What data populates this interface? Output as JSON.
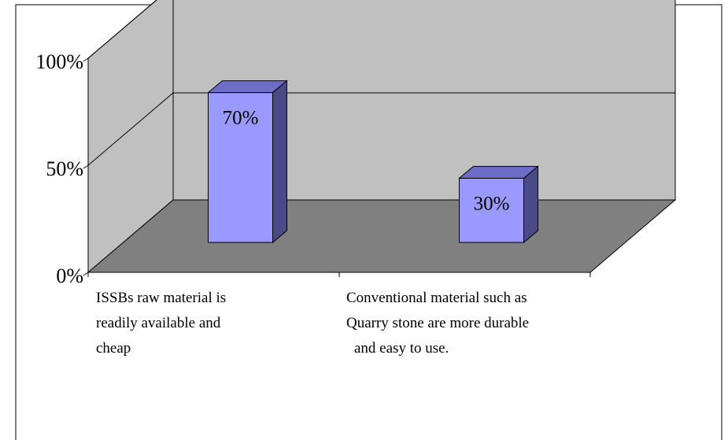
{
  "chart_data": {
    "type": "bar",
    "style": "3d-column",
    "categories": [
      "ISSBs raw material is readily available and cheap",
      "Conventional material such as Quarry stone are more durable and easy to use."
    ],
    "category_lines": [
      [
        "ISSBs raw material is",
        "readily available and",
        "cheap"
      ],
      [
        "Conventional material such as",
        "Quarry stone are more durable",
        "and easy to use."
      ]
    ],
    "values": [
      70,
      30
    ],
    "data_labels": [
      "70%",
      "30%"
    ],
    "ylim": [
      0,
      100
    ],
    "yticks": [
      0,
      50,
      100
    ],
    "ytick_labels": [
      "0%",
      "50%",
      "100%"
    ],
    "grid": true,
    "legend": "none",
    "colors": {
      "bar_front": "#9999ff",
      "bar_top": "#6e6ec8",
      "bar_side": "#4a4a86",
      "back_wall": "#c0c0c0",
      "side_wall": "#c0c0c0",
      "floor": "#808080",
      "gridline": "#000000",
      "border": "#000000"
    }
  }
}
